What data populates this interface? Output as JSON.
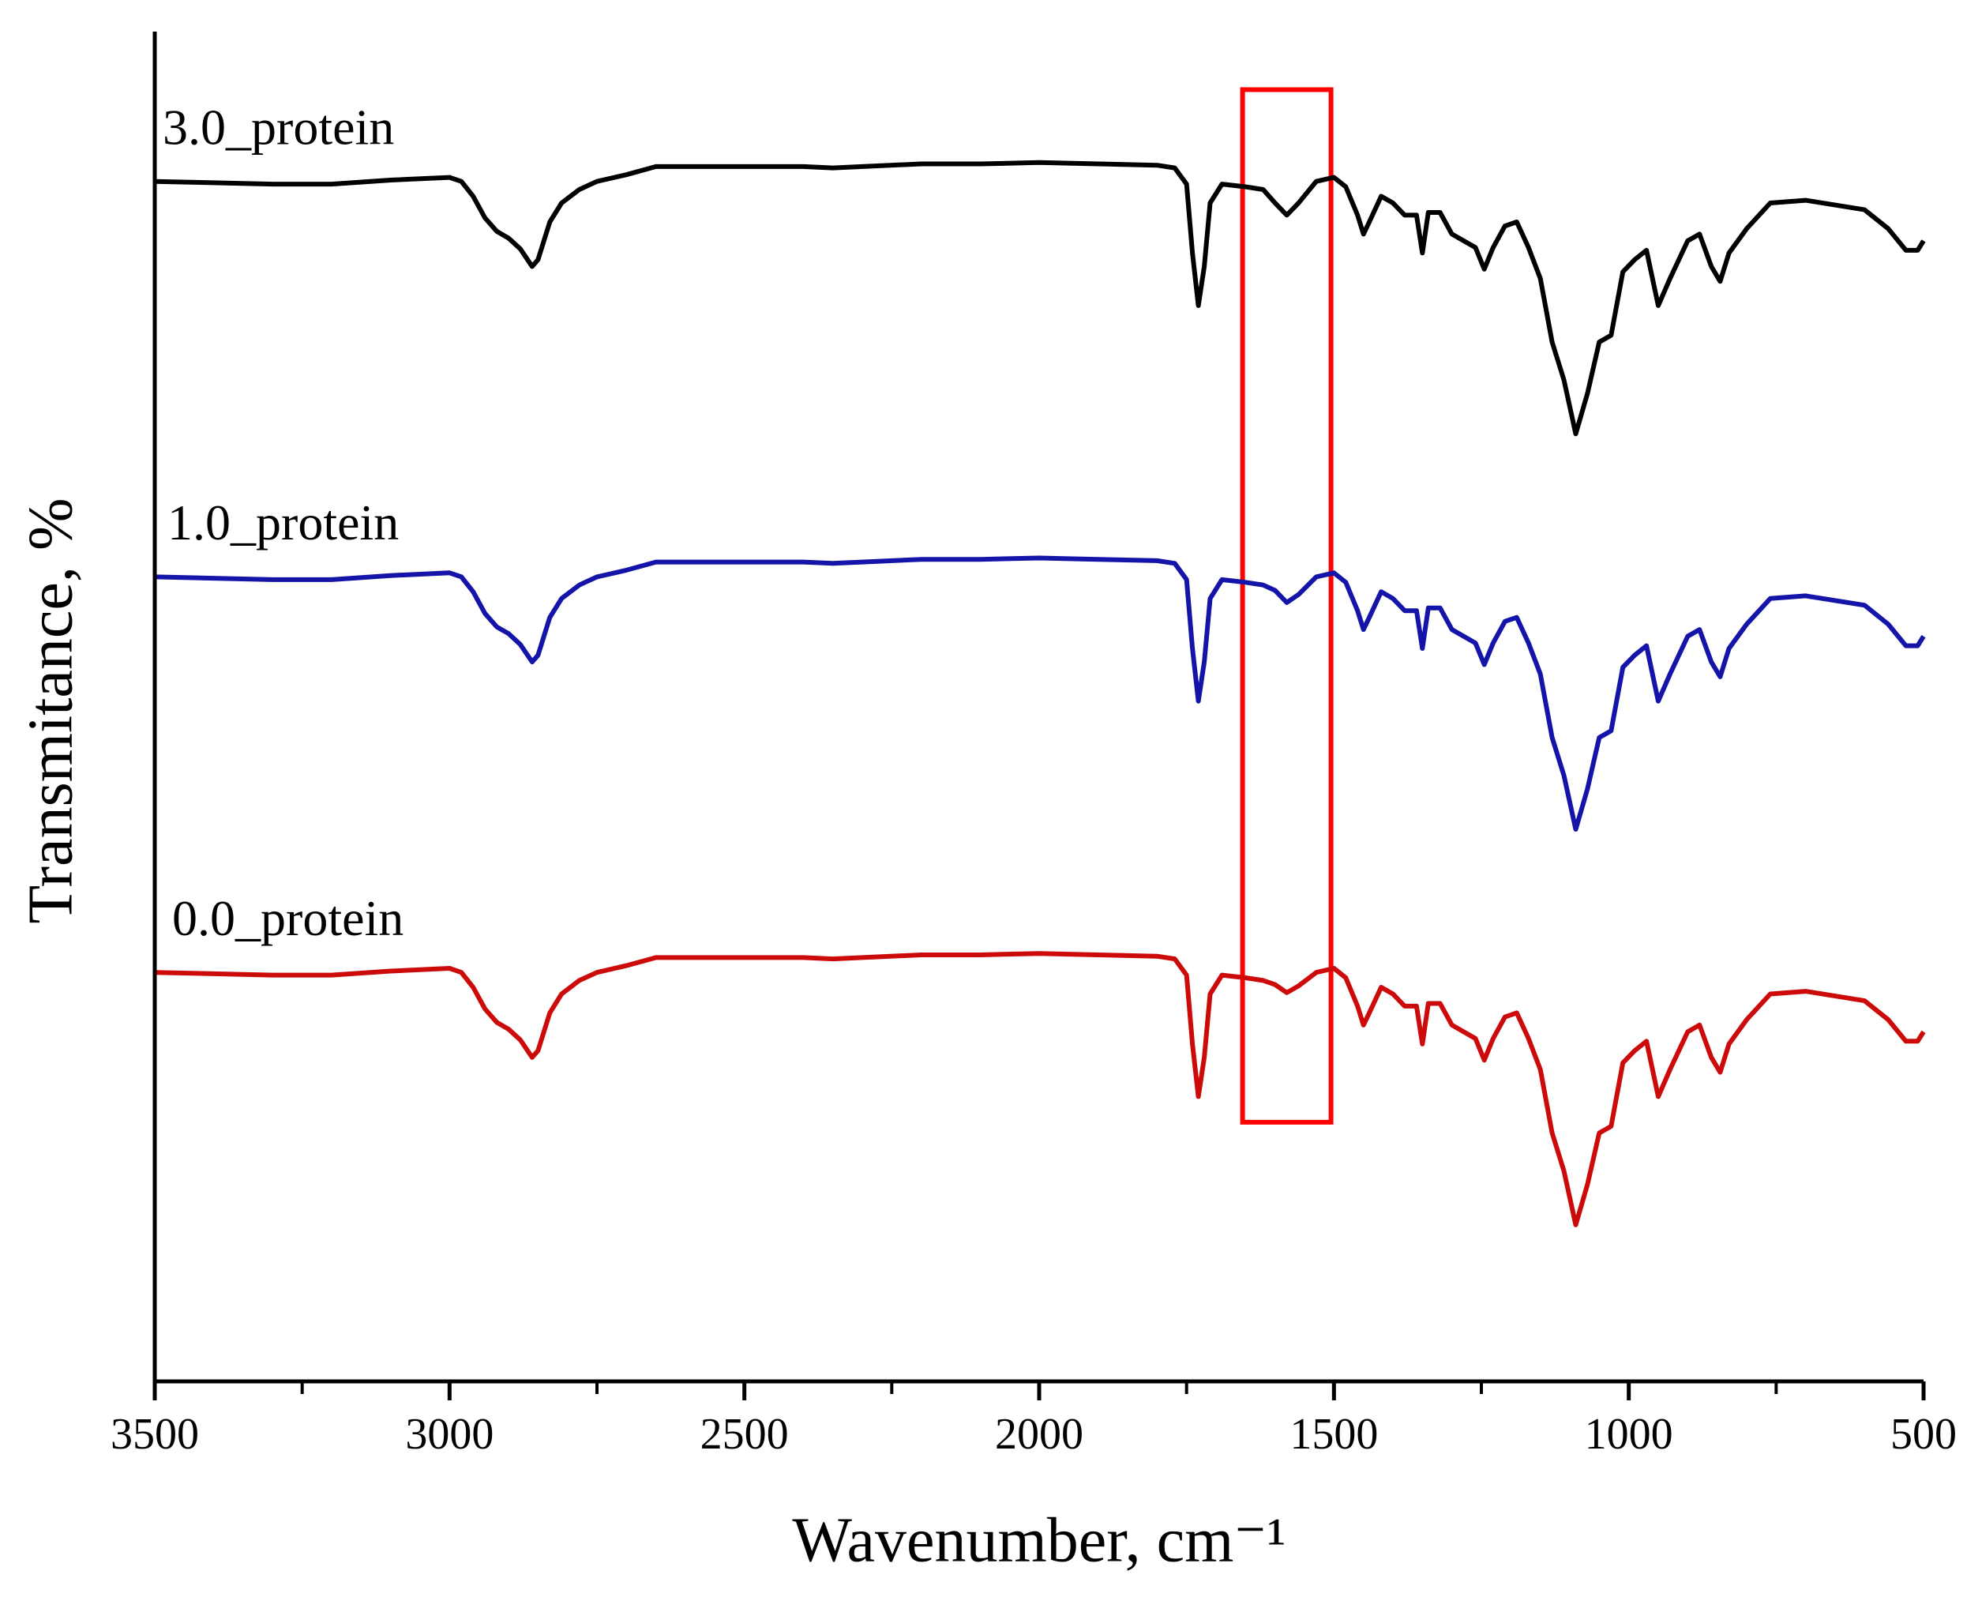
{
  "chart_data": {
    "type": "line",
    "xlabel": "Wavenumber, cm⁻¹",
    "ylabel": "Transmitance, %",
    "xlim": [
      3500,
      500
    ],
    "xticks": [
      3500,
      3000,
      2500,
      2000,
      1500,
      1000,
      500
    ],
    "xminorticks": [
      3250,
      2750,
      2250,
      1750,
      1250,
      750
    ],
    "ylim": [
      0,
      100
    ],
    "highlight": {
      "x": [
        1655,
        1505
      ],
      "y": [
        95.7,
        19.2
      ],
      "color": "#ff0000"
    },
    "x": [
      3500,
      3300,
      3200,
      3100,
      3000,
      2980,
      2960,
      2940,
      2920,
      2900,
      2880,
      2860,
      2850,
      2830,
      2810,
      2780,
      2750,
      2700,
      2650,
      2500,
      2400,
      2350,
      2300,
      2200,
      2100,
      2000,
      1900,
      1800,
      1770,
      1750,
      1740,
      1730,
      1720,
      1710,
      1690,
      1650,
      1620,
      1600,
      1580,
      1560,
      1530,
      1500,
      1480,
      1460,
      1450,
      1440,
      1420,
      1400,
      1380,
      1360,
      1350,
      1340,
      1320,
      1300,
      1280,
      1260,
      1245,
      1230,
      1210,
      1190,
      1170,
      1150,
      1130,
      1110,
      1090,
      1070,
      1050,
      1030,
      1010,
      990,
      970,
      950,
      930,
      900,
      880,
      860,
      845,
      830,
      800,
      760,
      700,
      600,
      560,
      530,
      510,
      500
    ],
    "series": [
      {
        "name": "3.0_protein",
        "color": "#000000",
        "values": [
          88.9,
          88.7,
          88.7,
          89.0,
          89.2,
          88.9,
          87.8,
          86.2,
          85.2,
          84.7,
          83.9,
          82.6,
          83.1,
          85.9,
          87.3,
          88.3,
          88.9,
          89.4,
          90.0,
          90.0,
          90.0,
          89.9,
          90.0,
          90.2,
          90.2,
          90.3,
          90.2,
          90.1,
          89.9,
          88.7,
          83.6,
          79.7,
          82.6,
          87.3,
          88.7,
          88.5,
          88.3,
          87.3,
          86.4,
          87.3,
          88.9,
          89.2,
          88.5,
          86.4,
          85.0,
          85.9,
          87.8,
          87.3,
          86.4,
          86.4,
          83.6,
          86.6,
          86.6,
          85.0,
          84.5,
          84.0,
          82.4,
          84.0,
          85.6,
          85.9,
          84.0,
          81.7,
          77.0,
          74.2,
          70.2,
          73.2,
          77.0,
          77.5,
          82.2,
          83.1,
          83.8,
          79.7,
          81.7,
          84.5,
          85.0,
          82.6,
          81.5,
          83.6,
          85.4,
          87.3,
          87.5,
          86.8,
          85.4,
          83.8,
          83.8,
          84.5
        ]
      },
      {
        "name": "1.0_protein",
        "color": "#1414a8",
        "values": [
          59.6,
          59.4,
          59.4,
          59.7,
          59.9,
          59.6,
          58.5,
          56.9,
          55.9,
          55.4,
          54.6,
          53.3,
          53.8,
          56.6,
          58.0,
          59.0,
          59.6,
          60.1,
          60.7,
          60.7,
          60.7,
          60.6,
          60.7,
          60.9,
          60.9,
          61.0,
          60.9,
          60.8,
          60.6,
          59.4,
          54.3,
          50.4,
          53.3,
          58.0,
          59.4,
          59.2,
          59.0,
          58.6,
          57.7,
          58.3,
          59.6,
          59.9,
          59.2,
          57.1,
          55.7,
          56.6,
          58.5,
          58.0,
          57.1,
          57.1,
          54.3,
          57.3,
          57.3,
          55.7,
          55.2,
          54.7,
          53.1,
          54.7,
          56.3,
          56.6,
          54.7,
          52.4,
          47.7,
          44.9,
          40.9,
          43.9,
          47.7,
          48.2,
          52.9,
          53.8,
          54.5,
          50.4,
          52.4,
          55.2,
          55.7,
          53.3,
          52.2,
          54.3,
          56.1,
          58.0,
          58.2,
          57.5,
          56.1,
          54.5,
          54.5,
          55.2
        ]
      },
      {
        "name": "0.0_protein",
        "color": "#cc0a0a",
        "values": [
          30.3,
          30.1,
          30.1,
          30.4,
          30.6,
          30.3,
          29.2,
          27.6,
          26.6,
          26.1,
          25.3,
          24.0,
          24.5,
          27.3,
          28.7,
          29.7,
          30.3,
          30.8,
          31.4,
          31.4,
          31.4,
          31.3,
          31.4,
          31.6,
          31.6,
          31.7,
          31.6,
          31.5,
          31.3,
          30.1,
          25.0,
          21.1,
          24.0,
          28.7,
          30.1,
          29.9,
          29.7,
          29.4,
          28.8,
          29.3,
          30.3,
          30.6,
          29.9,
          27.8,
          26.4,
          27.3,
          29.2,
          28.7,
          27.8,
          27.8,
          25.0,
          28.0,
          28.0,
          26.4,
          25.9,
          25.4,
          23.8,
          25.4,
          27.0,
          27.3,
          25.4,
          23.1,
          18.4,
          15.6,
          11.6,
          14.6,
          18.4,
          18.9,
          23.6,
          24.5,
          25.2,
          21.1,
          23.1,
          25.9,
          26.4,
          24.0,
          22.9,
          25.0,
          26.8,
          28.7,
          28.9,
          28.2,
          26.8,
          25.2,
          25.2,
          25.9
        ]
      }
    ]
  }
}
